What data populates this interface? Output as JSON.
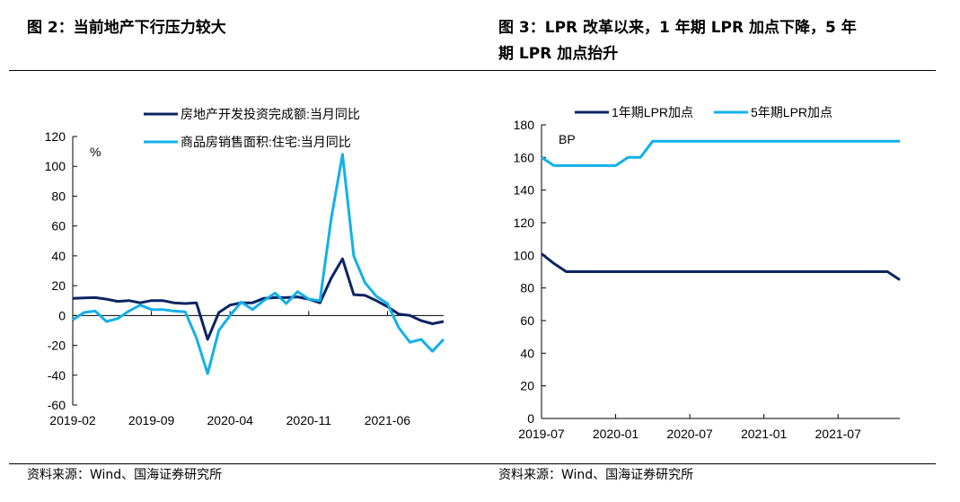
{
  "left_title": "图 2：当前地产下行压力较大",
  "right_title_line1": "图 3：LPR 改革以来，1 年期 LPR 加点下降，5 年",
  "right_title_line2": "期 LPR 加点抬升",
  "left_source": "资料来源：Wind、国海证券研究所",
  "right_source": "资料来源：Wind、国海证券研究所",
  "colors": {
    "dark": "#0B2463",
    "light": "#12B0EA"
  },
  "chart_data": [
    {
      "type": "line",
      "unit": "%",
      "ylim": [
        -60,
        120
      ],
      "yticks": [
        -60,
        -40,
        -20,
        0,
        20,
        40,
        60,
        80,
        100,
        120
      ],
      "xticks": [
        "2019-02",
        "2019-09",
        "2020-04",
        "2020-11",
        "2021-06"
      ],
      "x_start": "2019-02",
      "months": 34,
      "series": [
        {
          "name": "房地产开发投资完成额:当月同比",
          "color": "dark",
          "values": [
            11.5,
            11.8,
            12,
            11,
            9.5,
            10,
            8.5,
            10,
            10,
            8.5,
            8,
            8.5,
            -16,
            2,
            7,
            8.5,
            8.5,
            11.5,
            12,
            12,
            12.5,
            11,
            8.5,
            25,
            38,
            14,
            13.5,
            10,
            6,
            1,
            0,
            -3.5,
            -5.5,
            -4
          ]
        },
        {
          "name": "商品房销售面积:住宅:当月同比",
          "color": "light",
          "values": [
            -3,
            2,
            3,
            -4,
            -2,
            3,
            7,
            4,
            4,
            3,
            2.5,
            -15,
            -39,
            -10,
            0,
            9,
            4,
            10,
            15,
            8,
            16,
            11,
            10,
            65,
            108,
            40,
            22,
            13,
            8,
            -8,
            -18,
            -16,
            -24,
            -16
          ]
        }
      ]
    },
    {
      "type": "line",
      "unit": "BP",
      "ylim": [
        0,
        180
      ],
      "yticks": [
        0,
        20,
        40,
        60,
        80,
        100,
        120,
        140,
        160,
        180
      ],
      "xticks": [
        "2019-07",
        "2020-01",
        "2020-07",
        "2021-01",
        "2021-07"
      ],
      "x_start": "2019-07",
      "months": 30,
      "series": [
        {
          "name": "1年期LPR加点",
          "color": "dark",
          "values": [
            101,
            95,
            90,
            90,
            90,
            90,
            90,
            90,
            90,
            90,
            90,
            90,
            90,
            90,
            90,
            90,
            90,
            90,
            90,
            90,
            90,
            90,
            90,
            90,
            90,
            90,
            90,
            90,
            90,
            85
          ]
        },
        {
          "name": "5年期LPR加点",
          "color": "light",
          "values": [
            160,
            155,
            155,
            155,
            155,
            155,
            155,
            160,
            160,
            170,
            170,
            170,
            170,
            170,
            170,
            170,
            170,
            170,
            170,
            170,
            170,
            170,
            170,
            170,
            170,
            170,
            170,
            170,
            170,
            170
          ]
        }
      ]
    }
  ]
}
